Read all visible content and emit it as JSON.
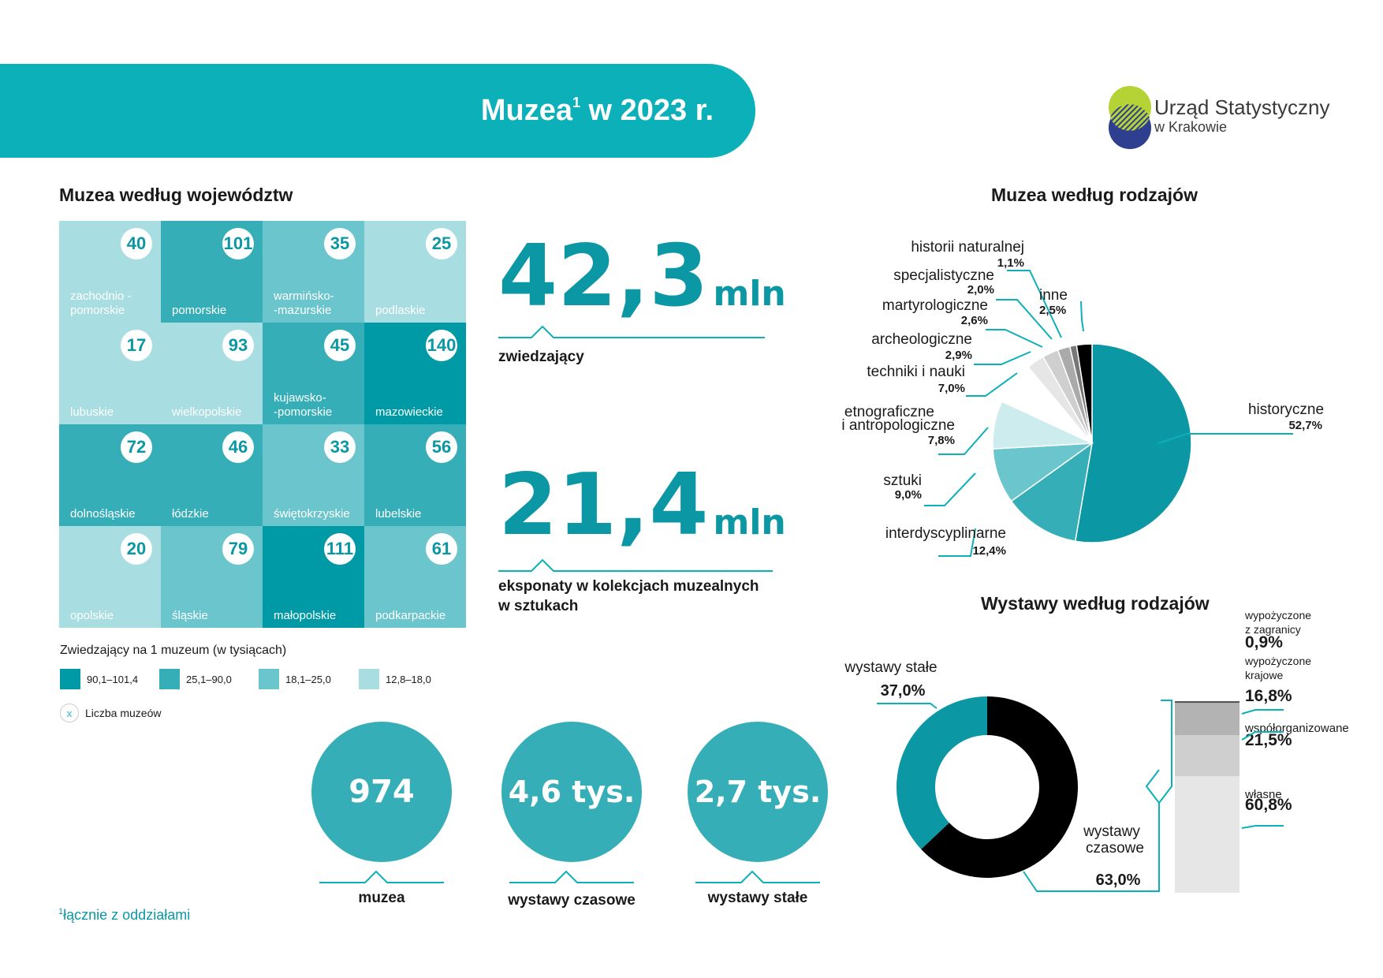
{
  "header": {
    "title": "Muzea",
    "title_sup": "1",
    "title_rest": " w 2023 r."
  },
  "logo": {
    "line1": "Urząd Statystyczny",
    "line2": "w Krakowie"
  },
  "colors": {
    "accent": "#0bb0b8",
    "dark_teal": "#009aa6",
    "mid_teal": "#35aeb7",
    "light_teal": "#6ac5cc",
    "pale_teal": "#a8dde2",
    "text_teal": "#0b97a3"
  },
  "map": {
    "title": "Muzea według województw",
    "legend_title": "Zwiedzający na 1 muzeum (w tysiącach)",
    "legend": [
      {
        "label": "90,1–101,4",
        "color": "#009aa6"
      },
      {
        "label": "25,1–90,0",
        "color": "#35aeb7"
      },
      {
        "label": "18,1–25,0",
        "color": "#6ac5cc"
      },
      {
        "label": "12,8–18,0",
        "color": "#a8dde2"
      }
    ],
    "count_icon": "x",
    "count_label": "Liczba muzeów",
    "cells": [
      {
        "name": "zachodnio    -\npomorskie",
        "count": "40",
        "cls": 4
      },
      {
        "name": "pomorskie",
        "count": "101",
        "cls": 2
      },
      {
        "name": "warmińsko-\n-mazurskie",
        "count": "35",
        "cls": 3
      },
      {
        "name": "podlaskie",
        "count": "25",
        "cls": 4
      },
      {
        "name": "lubuskie",
        "count": "17",
        "cls": 4
      },
      {
        "name": "wielkopolskie",
        "count": "93",
        "cls": 4
      },
      {
        "name": "kujawsko-\n-pomorskie",
        "count": "45",
        "cls": 2
      },
      {
        "name": "mazowieckie",
        "count": "140",
        "cls": 1
      },
      {
        "name": "dolnośląskie",
        "count": "72",
        "cls": 2
      },
      {
        "name": "łódzkie",
        "count": "46",
        "cls": 2
      },
      {
        "name": "świętokrzyskie",
        "count": "33",
        "cls": 3
      },
      {
        "name": "lubelskie",
        "count": "56",
        "cls": 2
      },
      {
        "name": "opolskie",
        "count": "20",
        "cls": 4
      },
      {
        "name": "śląskie",
        "count": "79",
        "cls": 3
      },
      {
        "name": "małopolskie",
        "count": "111",
        "cls": 1
      },
      {
        "name": "podkarpackie",
        "count": "61",
        "cls": 3
      }
    ]
  },
  "stats": {
    "visitors": {
      "value": "42,3",
      "unit": "mln",
      "label": "zwiedzający"
    },
    "exhibits": {
      "value": "21,4",
      "unit": "mln",
      "label_line1": "eksponaty w kolekcjach muzealnych",
      "label_line2": "w sztukach"
    },
    "museums": {
      "value": "974",
      "label": "muzea"
    },
    "temporary": {
      "value": "4,6 tys.",
      "label": "wystawy czasowe"
    },
    "permanent": {
      "value": "2,7 tys.",
      "label": "wystawy stałe"
    }
  },
  "footnote": {
    "sup": "1",
    "text": "łącznie z oddziałami"
  },
  "chart_data": [
    {
      "type": "pie",
      "title": "Muzea według rodzajów",
      "slices": [
        {
          "label": "historyczne",
          "value": 52.7,
          "value_label": "52,7%",
          "color": "#0b97a3"
        },
        {
          "label": "interdyscyplinarne",
          "value": 12.4,
          "value_label": "12,4%",
          "color": "#35aeb7"
        },
        {
          "label": "sztuki",
          "value": 9.0,
          "value_label": "9,0%",
          "color": "#6ac5cc"
        },
        {
          "label": "etnograficzne\ni antropologiczne",
          "value": 7.8,
          "value_label": "7,8%",
          "color": "#cdecee"
        },
        {
          "label": "techniki i nauki",
          "value": 7.0,
          "value_label": "7,0%",
          "color": "#ffffff"
        },
        {
          "label": "archeologiczne",
          "value": 2.9,
          "value_label": "2,9%",
          "color": "#e6e6e6"
        },
        {
          "label": "martyrologiczne",
          "value": 2.6,
          "value_label": "2,6%",
          "color": "#cfcfcf"
        },
        {
          "label": "specjalistyczne",
          "value": 2.0,
          "value_label": "2,0%",
          "color": "#aaaaaa"
        },
        {
          "label": "historii naturalnej",
          "value": 1.1,
          "value_label": "1,1%",
          "color": "#777777"
        },
        {
          "label": "inne",
          "value": 2.5,
          "value_label": "2,5%",
          "color": "#000000"
        }
      ]
    },
    {
      "type": "pie",
      "title": "Wystawy według rodzajów",
      "slices": [
        {
          "label": "wystawy stałe",
          "value": 37.0,
          "value_label": "37,0%",
          "color": "#0b97a3"
        },
        {
          "label": "wystawy czasowe",
          "value": 63.0,
          "value_label": "63,0%",
          "color": "#000000"
        }
      ]
    },
    {
      "type": "bar",
      "title": "",
      "series": [
        {
          "name": "wypożyczone z zagranicy",
          "value": 0.9,
          "value_label": "0,9%",
          "color": "#555555"
        },
        {
          "name": "wypożyczone krajowe",
          "value": 16.8,
          "value_label": "16,8%",
          "color": "#b3b3b3"
        },
        {
          "name": "współorganizowane",
          "value": 21.5,
          "value_label": "21,5%",
          "color": "#cfcfcf"
        },
        {
          "name": "własne",
          "value": 60.8,
          "value_label": "60,8%",
          "color": "#e6e6e6"
        }
      ]
    }
  ]
}
